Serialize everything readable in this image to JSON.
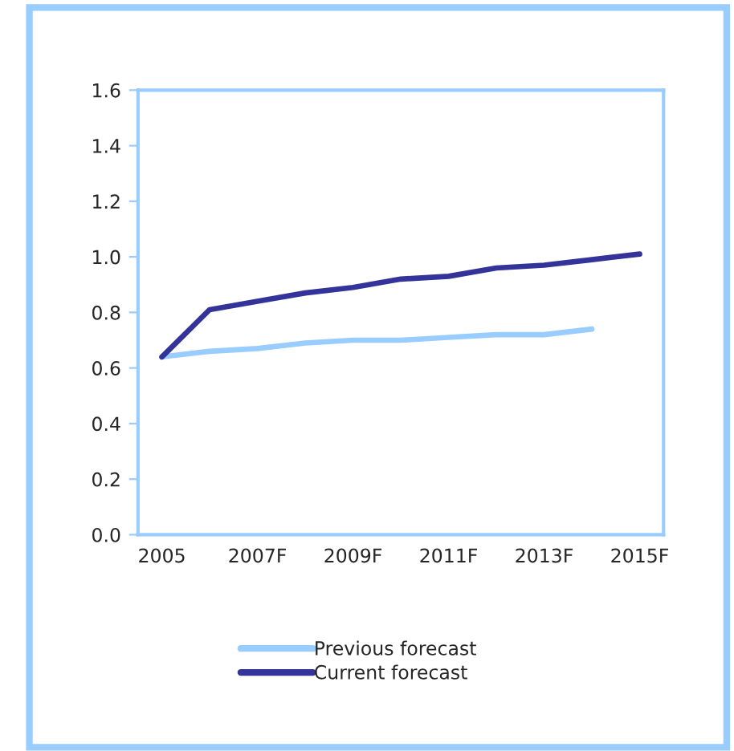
{
  "chart_data": {
    "type": "line",
    "categories": [
      "2005",
      null,
      "2007F",
      null,
      "2009F",
      null,
      "2011F",
      null,
      "2013F",
      null,
      "2015F"
    ],
    "series": [
      {
        "name": "Previous forecast",
        "color": "#99ccff",
        "values": [
          0.64,
          0.66,
          0.67,
          0.69,
          0.7,
          0.7,
          0.71,
          0.72,
          0.72,
          0.74,
          null
        ]
      },
      {
        "name": "Current forecast",
        "color": "#333399",
        "values": [
          0.64,
          0.81,
          0.84,
          0.87,
          0.89,
          0.92,
          0.93,
          0.96,
          0.97,
          0.99,
          1.01
        ]
      }
    ],
    "ylim": [
      0,
      1.6
    ],
    "yticks": [
      {
        "value": 0,
        "label": "0.0"
      },
      0.2,
      0.4,
      0.6,
      0.8,
      {
        "value": 1,
        "label": "1.0"
      },
      1.2,
      1.4,
      1.6
    ],
    "grid": false,
    "legend": "bottom",
    "marker": "none",
    "line_style": "solid"
  }
}
